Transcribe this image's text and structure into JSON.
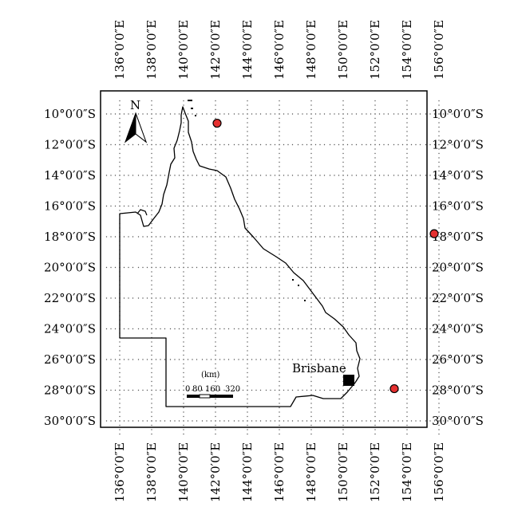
{
  "map": {
    "top_lon_labels": [
      "136°0′0″E",
      "138°0′0″E",
      "140°0′0″E",
      "142°0′0″E",
      "144°0′0″E",
      "146°0′0″E",
      "148°0′0″E",
      "150°0′0″E",
      "152°0′0″E",
      "154°0′0″E",
      "156°0′0″E"
    ],
    "bottom_lon_labels": [
      "136°0′0″E",
      "138°0′0″E",
      "140°0′0″E",
      "142°0′0″E",
      "144°0′0″E",
      "146°0′0″E",
      "148°0′0″E",
      "150°0′0″E",
      "152°0′0″E",
      "154°0′0″E",
      "156°0′0″E"
    ],
    "left_lat_labels": [
      "10°0′0″S",
      "12°0′0″S",
      "14°0′0″S",
      "16°0′0″S",
      "18°0′0″S",
      "20°0′0″S",
      "22°0′0″S",
      "24°0′0″S",
      "26°0′0″S",
      "28°0′0″S",
      "30°0′0″S"
    ],
    "right_lat_labels": [
      "10°0′0″S",
      "12°0′0″S",
      "14°0′0″S",
      "16°0′0″S",
      "18°0′0″S",
      "20°0′0″S",
      "22°0′0″S",
      "24°0′0″S",
      "26°0′0″S",
      "28°0′0″S",
      "30°0′0″S"
    ],
    "north_label": "N",
    "city_label": "Brisbane",
    "scale": {
      "unit": "(km)",
      "ticks": [
        "0",
        "80",
        "160",
        "320"
      ]
    },
    "sites": [
      {
        "lon": 142.1,
        "lat": -10.6
      },
      {
        "lon": 155.7,
        "lat": -17.8
      },
      {
        "lon": 153.2,
        "lat": -27.9
      }
    ],
    "colors": {
      "site_fill": "#e53030",
      "site_stroke": "#000000",
      "land_line": "#000000",
      "grid": "#555555"
    }
  }
}
